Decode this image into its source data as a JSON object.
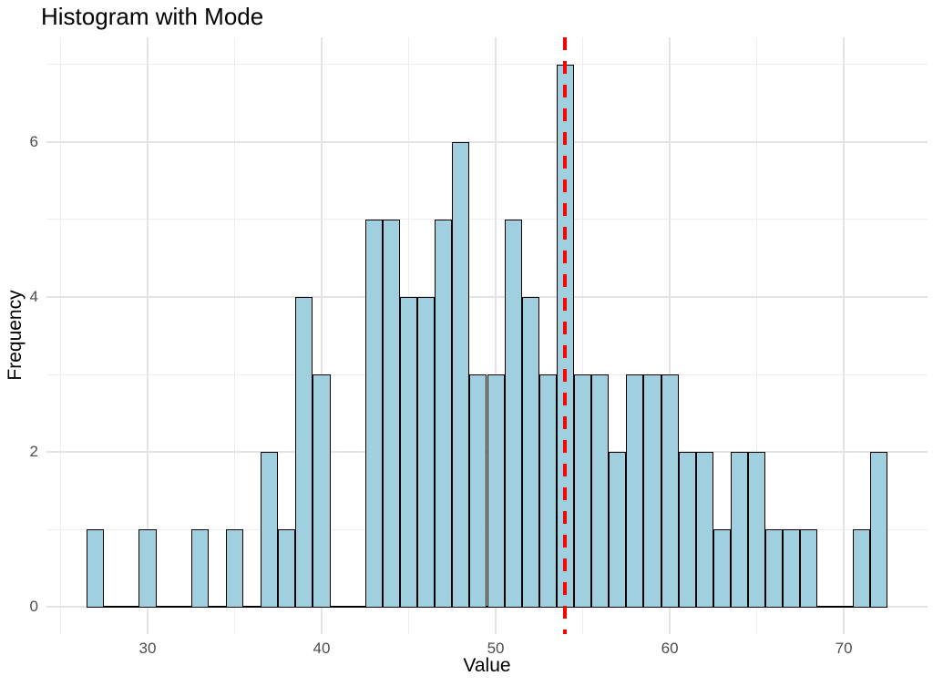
{
  "title": "Histogram with Mode",
  "chart_data": {
    "type": "bar",
    "subtype": "histogram",
    "title": "Histogram with Mode",
    "xlabel": "Value",
    "ylabel": "Frequency",
    "bin_width": 1,
    "bin_centers": [
      27,
      30,
      33,
      35,
      37,
      38,
      39,
      40,
      43,
      44,
      45,
      46,
      47,
      48,
      49,
      50,
      51,
      52,
      53,
      54,
      55,
      56,
      57,
      58,
      59,
      60,
      61,
      62,
      63,
      64,
      65,
      66,
      67,
      68,
      71,
      72
    ],
    "frequencies": [
      1,
      1,
      1,
      1,
      2,
      1,
      4,
      3,
      5,
      5,
      4,
      4,
      5,
      6,
      3,
      3,
      5,
      4,
      3,
      7,
      3,
      3,
      2,
      3,
      3,
      3,
      2,
      2,
      1,
      2,
      2,
      1,
      1,
      1,
      1,
      2
    ],
    "total_count": 100,
    "mode_line_x": 54,
    "baseline_extent": [
      26.5,
      72.5
    ],
    "x_ticks": [
      30,
      40,
      50,
      60,
      70
    ],
    "x_minor_ticks": [
      25,
      35,
      45,
      55,
      65
    ],
    "y_ticks": [
      0,
      2,
      4,
      6
    ],
    "y_minor_ticks": [
      1,
      3,
      5,
      7
    ],
    "x_range": [
      24.19,
      74.81
    ],
    "y_range": [
      -0.35,
      7.35
    ],
    "grid": true,
    "legend": "none",
    "colors": {
      "bar_fill": "#a0d0e0",
      "bar_stroke": "#000000",
      "mode_line": "#ff0000",
      "baseline": "#000000",
      "grid_major": "#e3e3e3",
      "grid_minor": "#ededed",
      "tick_label": "#4d4d4d",
      "text": "#000000",
      "background": "#ffffff"
    }
  }
}
